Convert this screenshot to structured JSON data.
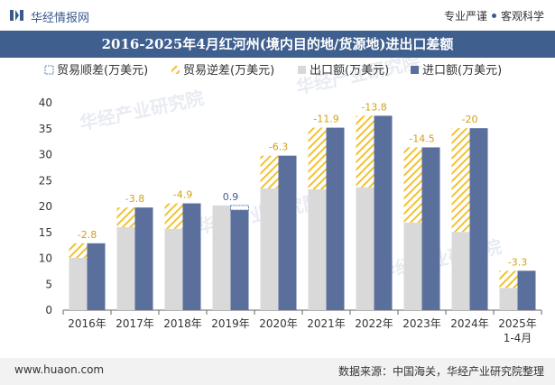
{
  "header": {
    "site_name": "华经情报网",
    "tagline_left": "专业严谨",
    "tagline_right": "客观科学"
  },
  "footer": {
    "url": "www.huaon.com",
    "source": "数据来源：中国海关，华经产业研究院整理"
  },
  "watermark": "华经产业研究院",
  "colors": {
    "title_bar": "#3f5f8f",
    "import": "#5b6f9c",
    "export": "#d9d9d9",
    "surplus_border": "#5b7fb0",
    "deficit_stripe": "#f2c230",
    "surplus_label": "#3f5f8f",
    "deficit_label": "#d4a017"
  },
  "chart_data": {
    "type": "bar",
    "title": "2016-2025年4月红河州(境内目的地/货源地)进出口差额",
    "categories": [
      "2016年",
      "2017年",
      "2018年",
      "2019年",
      "2020年",
      "2021年",
      "2022年",
      "2023年",
      "2024年",
      "2025年\n1-4月"
    ],
    "series": [
      {
        "name": "贸易顺差(万美元)",
        "values": [
          null,
          null,
          null,
          0.9,
          null,
          null,
          null,
          null,
          null,
          null
        ]
      },
      {
        "name": "贸易逆差(万美元)",
        "values": [
          -2.8,
          -3.8,
          -4.9,
          null,
          -6.3,
          -11.9,
          -13.8,
          -14.5,
          -20,
          -3.3
        ]
      },
      {
        "name": "出口额(万美元)",
        "values": [
          10.1,
          16.0,
          15.7,
          20.2,
          23.5,
          23.3,
          23.7,
          16.9,
          15.1,
          4.3
        ]
      },
      {
        "name": "进口额(万美元)",
        "values": [
          12.9,
          19.8,
          20.6,
          19.3,
          29.8,
          35.2,
          37.5,
          31.4,
          35.1,
          7.6
        ]
      }
    ],
    "data_labels": [
      "-2.8",
      "-3.8",
      "-4.9",
      "0.9",
      "-6.3",
      "-11.9",
      "-13.8",
      "-14.5",
      "-20",
      "-3.3"
    ],
    "ylim": [
      0,
      40
    ],
    "yticks": [
      0,
      5,
      10,
      15,
      20,
      25,
      30,
      35,
      40
    ],
    "legend_position": "top-left",
    "grid": false
  }
}
